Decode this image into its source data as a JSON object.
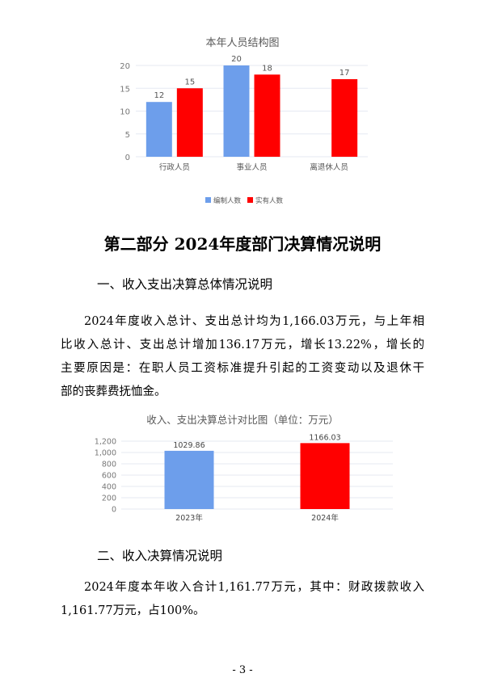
{
  "chart_data": [
    {
      "type": "bar",
      "title": "本年人员结构图",
      "categories": [
        "行政人员",
        "事业人员",
        "离退休人员"
      ],
      "series": [
        {
          "name": "编制人数",
          "values": [
            12,
            20,
            null
          ],
          "color": "#6d9eeb"
        },
        {
          "name": "实有人数",
          "values": [
            15,
            18,
            17
          ],
          "color": "#ff0000"
        }
      ],
      "ylim": [
        0,
        20
      ],
      "yticks": [
        "0",
        "5",
        "10",
        "15",
        "20"
      ],
      "grid": true,
      "legend": "bottom"
    },
    {
      "type": "bar",
      "title": "收入、支出决算总计对比图（单位：万元）",
      "categories": [
        "2023年",
        "2024年"
      ],
      "values": [
        1029.86,
        1166.03
      ],
      "data_labels": [
        "1029.86",
        "1166.03"
      ],
      "colors": [
        "#6d9eeb",
        "#ff0000"
      ],
      "ylim": [
        0,
        1200
      ],
      "yticks": [
        "0",
        "200",
        "400",
        "600",
        "800",
        "1,000",
        "1,200"
      ],
      "grid": true
    }
  ],
  "document": {
    "part_title": "第二部分 2024年度部门决算情况说明",
    "section1_title": "一、收入支出决算总体情况说明",
    "section1_lines": [
      "2024年度收入总计、支出总计均为1,166.03万元，与上年相",
      "比收入总计、支出总计增加136.17万元，增长13.22%，增长的",
      "主要原因是：在职人员工资标准提升引起的工资变动以及退休干",
      "部的丧葬费抚恤金。"
    ],
    "section2_title": "二、收入决算情况说明",
    "section2_lines": [
      "2024年度本年收入合计1,161.77万元，其中：财政拨款收入",
      "1,161.77万元，占100%。"
    ],
    "page_number": "- 3 -"
  }
}
